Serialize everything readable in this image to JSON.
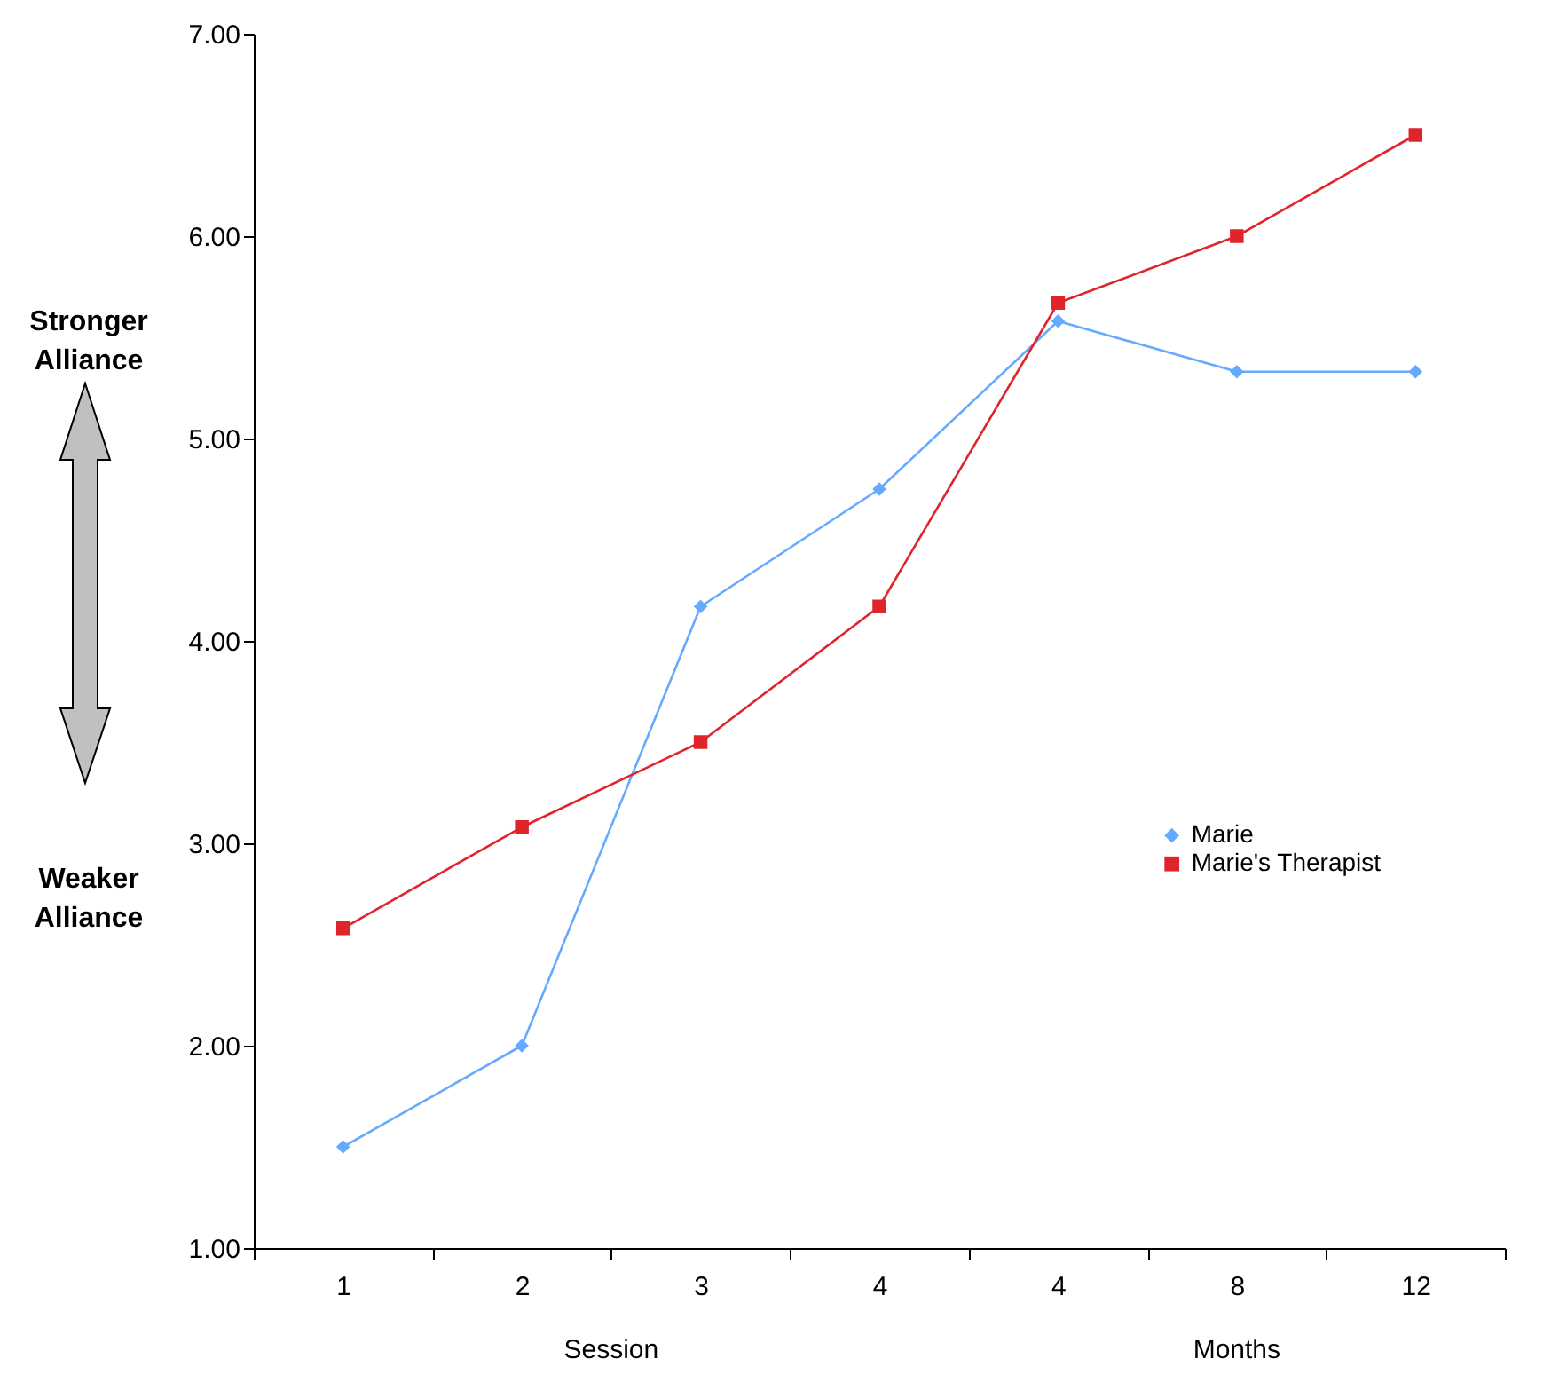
{
  "chart_data": {
    "type": "line",
    "categories": [
      "1",
      "2",
      "3",
      "4",
      "4",
      "8",
      "12"
    ],
    "series": [
      {
        "name": "Marie",
        "color": "#66aaff",
        "marker": "diamond",
        "values": [
          1.5,
          2.0,
          4.17,
          4.75,
          5.58,
          5.33,
          5.33
        ]
      },
      {
        "name": "Marie's Therapist",
        "color": "#e0242c",
        "marker": "square",
        "values": [
          2.58,
          3.08,
          3.5,
          4.17,
          5.67,
          6.0,
          6.5
        ]
      }
    ],
    "ylim": [
      1,
      7
    ],
    "yticks": [
      {
        "value": 1,
        "label": "1.00"
      },
      {
        "value": 2,
        "label": "2.00"
      },
      {
        "value": 3,
        "label": "3.00"
      },
      {
        "value": 4,
        "label": "4.00"
      },
      {
        "value": 5,
        "label": "5.00"
      },
      {
        "value": 6,
        "label": "6.00"
      },
      {
        "value": 7,
        "label": "7.00"
      }
    ],
    "annotations": [
      "Stronger Alliance",
      "Weaker Alliance",
      "Session",
      "Months"
    ],
    "grid": false,
    "legend": "right",
    "line_style": "solid"
  }
}
